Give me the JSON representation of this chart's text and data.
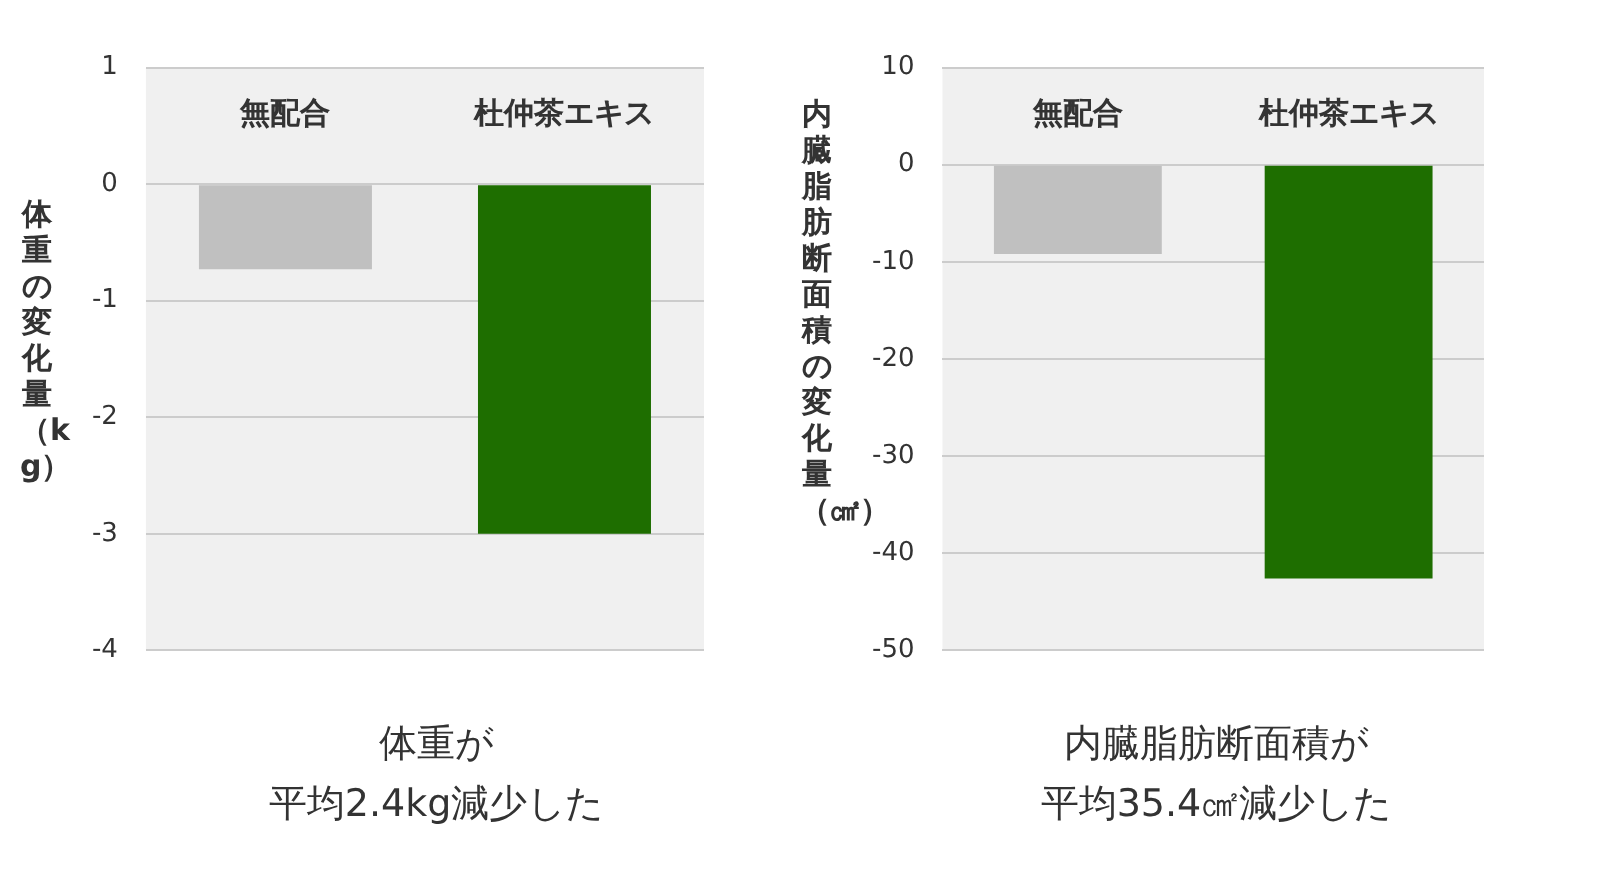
{
  "chart_data": [
    {
      "type": "bar",
      "ylabel": "体重の変化量（kg）",
      "categories": [
        "無配合",
        "杜仲茶エキス"
      ],
      "values": [
        -0.73,
        -3.0
      ],
      "colors": [
        "#c0c0c0",
        "#1e6e00"
      ],
      "ylim": [
        -4,
        1
      ],
      "yticks": [
        -4,
        -3,
        -2,
        -1,
        0,
        1
      ],
      "grid": "y",
      "annotations": [
        "体重が",
        "平均2.4kg減少した"
      ]
    },
    {
      "type": "bar",
      "ylabel": "内臓脂肪断面積の変化量（㎠）",
      "categories": [
        "無配合",
        "杜仲茶エキス"
      ],
      "values": [
        -9.2,
        -42.6
      ],
      "colors": [
        "#c0c0c0",
        "#1e6e00"
      ],
      "ylim": [
        -50,
        10
      ],
      "yticks": [
        -50,
        -40,
        -30,
        -20,
        -10,
        0,
        10
      ],
      "grid": "y",
      "annotations": [
        "内臓脂肪断面積が",
        "平均35.4㎠減少した"
      ]
    }
  ]
}
